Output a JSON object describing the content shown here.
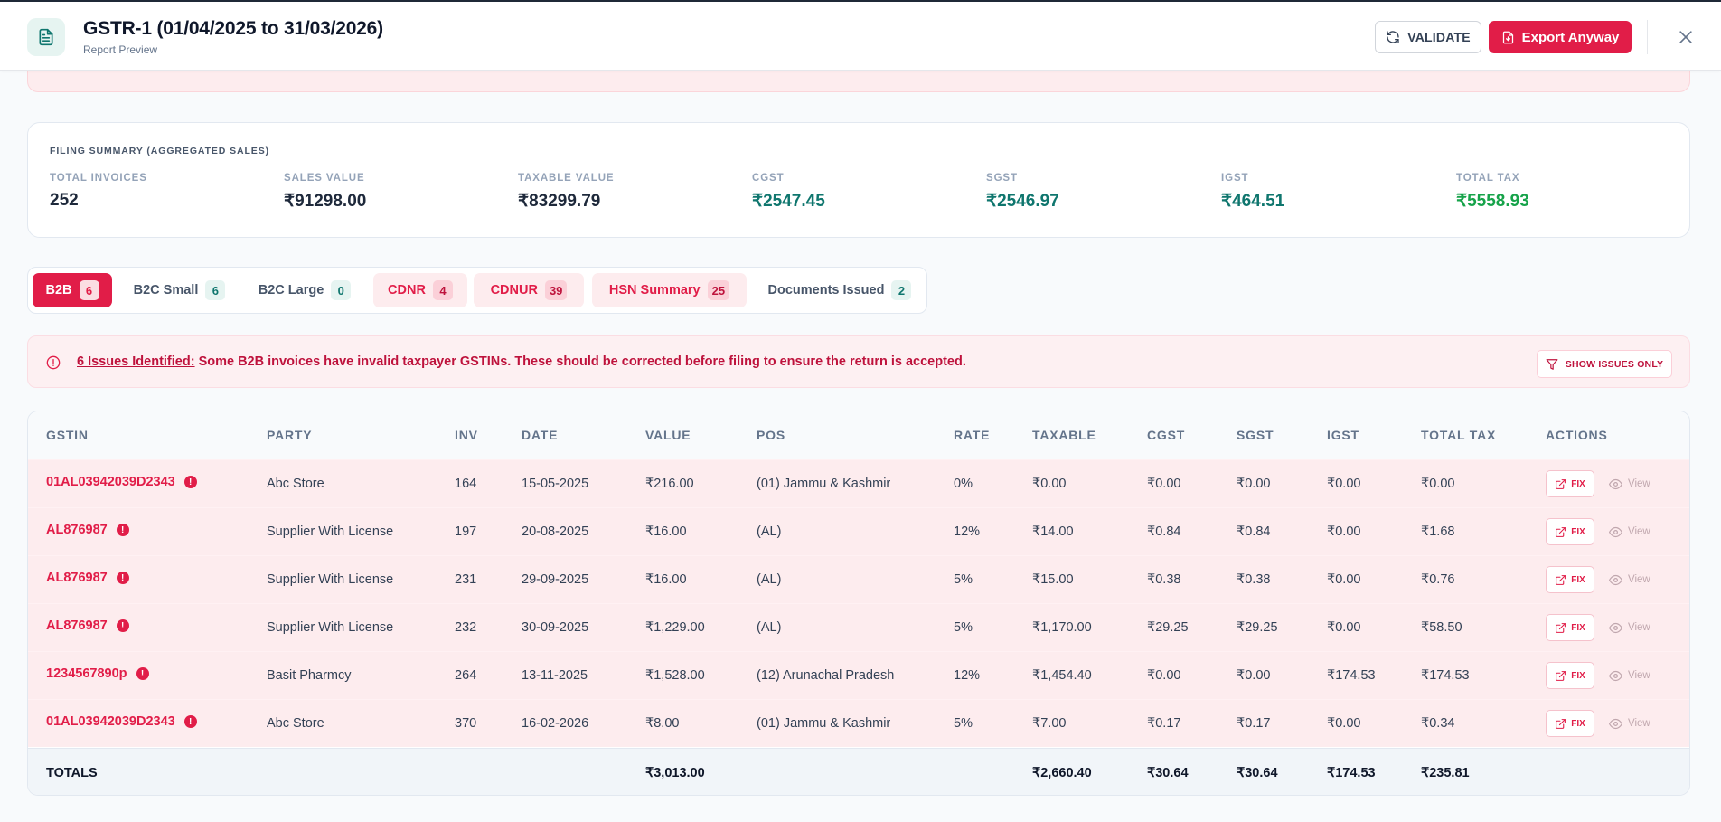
{
  "header": {
    "title": "GSTR-1 (01/04/2025 to 31/03/2026)",
    "subtitle": "Report Preview",
    "validate_label": "VALIDATE",
    "export_label": "Export Anyway"
  },
  "summary": {
    "heading": "FILING SUMMARY (AGGREGATED SALES)",
    "metrics": [
      {
        "label": "TOTAL INVOICES",
        "value": "252",
        "color": "#1e293b"
      },
      {
        "label": "SALES VALUE",
        "value": "₹91298.00",
        "color": "#1e293b"
      },
      {
        "label": "TAXABLE VALUE",
        "value": "₹83299.79",
        "color": "#1e293b"
      },
      {
        "label": "CGST",
        "value": "₹2547.45",
        "color": "#0f766e"
      },
      {
        "label": "SGST",
        "value": "₹2546.97",
        "color": "#0f766e"
      },
      {
        "label": "IGST",
        "value": "₹464.51",
        "color": "#0f766e"
      },
      {
        "label": "TOTAL TAX",
        "value": "₹5558.93",
        "color": "#16a34a"
      }
    ]
  },
  "tabs": [
    {
      "label": "B2B",
      "count": "6",
      "state": "active"
    },
    {
      "label": "B2C Small",
      "count": "6",
      "state": "plain"
    },
    {
      "label": "B2C Large",
      "count": "0",
      "state": "plain"
    },
    {
      "label": "CDNR",
      "count": "4",
      "state": "err"
    },
    {
      "label": "CDNUR",
      "count": "39",
      "state": "err"
    },
    {
      "label": "HSN Summary",
      "count": "25",
      "state": "err"
    },
    {
      "label": "Documents Issued",
      "count": "2",
      "state": "plain"
    }
  ],
  "issues": {
    "lead": "6 Issues Identified:",
    "message": " Some B2B invoices have invalid taxpayer GSTINs. These should be corrected before filing to ensure the return is accepted.",
    "button_label": "SHOW ISSUES ONLY"
  },
  "table": {
    "columns": [
      "GSTIN",
      "PARTY",
      "INV",
      "DATE",
      "VALUE",
      "POS",
      "RATE",
      "TAXABLE",
      "CGST",
      "SGST",
      "IGST",
      "TOTAL TAX",
      "ACTIONS"
    ],
    "fix_label": "FIX",
    "view_label": "View",
    "rows": [
      [
        "01AL03942039D2343",
        "Abc Store",
        "164",
        "15-05-2025",
        "₹216.00",
        "(01) Jammu & Kashmir",
        "0%",
        "₹0.00",
        "₹0.00",
        "₹0.00",
        "₹0.00",
        "₹0.00"
      ],
      [
        "AL876987",
        "Supplier With License",
        "197",
        "20-08-2025",
        "₹16.00",
        "(AL)",
        "12%",
        "₹14.00",
        "₹0.84",
        "₹0.84",
        "₹0.00",
        "₹1.68"
      ],
      [
        "AL876987",
        "Supplier With License",
        "231",
        "29-09-2025",
        "₹16.00",
        "(AL)",
        "5%",
        "₹15.00",
        "₹0.38",
        "₹0.38",
        "₹0.00",
        "₹0.76"
      ],
      [
        "AL876987",
        "Supplier With License",
        "232",
        "30-09-2025",
        "₹1,229.00",
        "(AL)",
        "5%",
        "₹1,170.00",
        "₹29.25",
        "₹29.25",
        "₹0.00",
        "₹58.50"
      ],
      [
        "1234567890p",
        "Basit Pharmcy",
        "264",
        "13-11-2025",
        "₹1,528.00",
        "(12) Arunachal Pradesh",
        "12%",
        "₹1,454.40",
        "₹0.00",
        "₹0.00",
        "₹174.53",
        "₹174.53"
      ],
      [
        "01AL03942039D2343",
        "Abc Store",
        "370",
        "16-02-2026",
        "₹8.00",
        "(01) Jammu & Kashmir",
        "5%",
        "₹7.00",
        "₹0.17",
        "₹0.17",
        "₹0.00",
        "₹0.34"
      ]
    ],
    "totals": {
      "label": "TOTALS",
      "value": "₹3,013.00",
      "taxable": "₹2,660.40",
      "cgst": "₹30.64",
      "sgst": "₹30.64",
      "igst": "₹174.53",
      "total_tax": "₹235.81"
    }
  }
}
